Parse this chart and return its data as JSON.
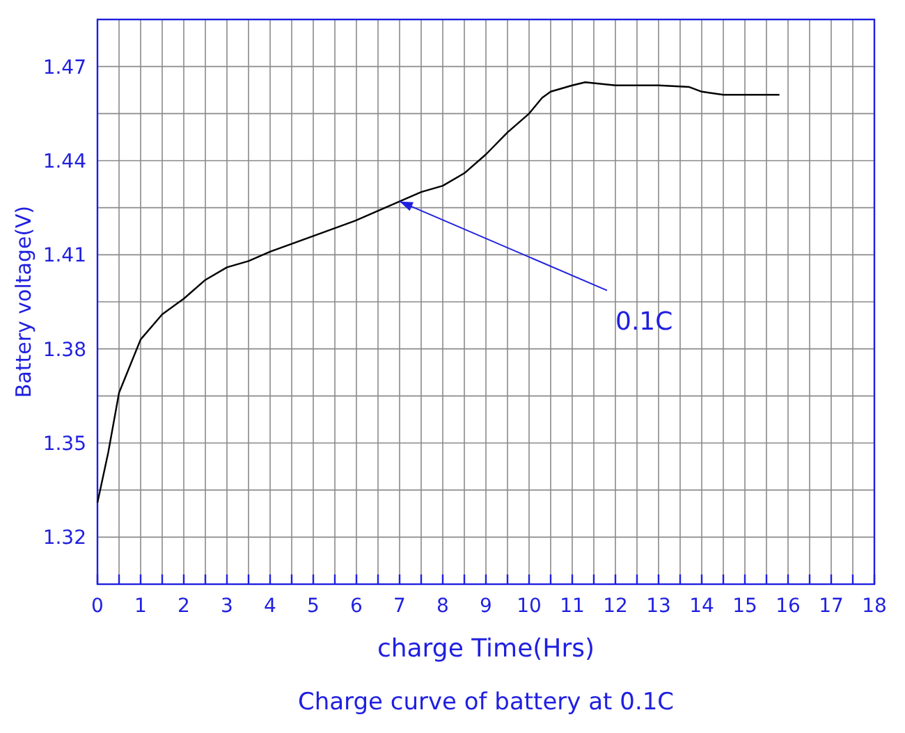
{
  "chart_data": {
    "type": "line",
    "title": "Charge curve of battery at 0.1C",
    "xlabel": "charge Time(Hrs)",
    "ylabel": "Battery voltage(V)",
    "x": [
      0,
      0.25,
      0.5,
      1,
      1.5,
      2,
      2.5,
      3,
      3.5,
      4,
      5,
      6,
      7,
      7.5,
      8,
      8.5,
      9,
      9.5,
      10,
      10.3,
      10.5,
      11,
      11.3,
      12,
      13,
      13.7,
      14,
      14.5,
      15.8
    ],
    "series": [
      {
        "color": "#000000",
        "values": [
          1.331,
          1.347,
          1.366,
          1.383,
          1.391,
          1.396,
          1.402,
          1.406,
          1.408,
          1.411,
          1.416,
          1.421,
          1.427,
          1.43,
          1.432,
          1.436,
          1.442,
          1.449,
          1.455,
          1.46,
          1.462,
          1.464,
          1.465,
          1.464,
          1.464,
          1.4635,
          1.462,
          1.461,
          1.461
        ]
      }
    ],
    "xlim": [
      0,
      18
    ],
    "xticks": [
      0,
      {
        "value": 0.5,
        "label": null
      },
      1,
      {
        "value": 1.5,
        "label": null
      },
      2,
      {
        "value": 2.5,
        "label": null
      },
      3,
      {
        "value": 3.5,
        "label": null
      },
      4,
      {
        "value": 4.5,
        "label": null
      },
      5,
      {
        "value": 5.5,
        "label": null
      },
      6,
      {
        "value": 6.5,
        "label": null
      },
      7,
      {
        "value": 7.5,
        "label": null
      },
      8,
      {
        "value": 8.5,
        "label": null
      },
      9,
      {
        "value": 9.5,
        "label": null
      },
      10,
      {
        "value": 10.5,
        "label": null
      },
      11,
      {
        "value": 11.5,
        "label": null
      },
      12,
      {
        "value": 12.5,
        "label": null
      },
      13,
      {
        "value": 13.5,
        "label": null
      },
      14,
      {
        "value": 14.5,
        "label": null
      },
      15,
      {
        "value": 15.5,
        "label": null
      },
      16,
      {
        "value": 16.5,
        "label": null
      },
      17,
      {
        "value": 17.5,
        "label": null
      },
      18
    ],
    "ylim": [
      1.305,
      1.485
    ],
    "yticks": [
      {
        "value": 1.305,
        "label": null
      },
      1.32,
      {
        "value": 1.335,
        "label": null
      },
      1.35,
      {
        "value": 1.365,
        "label": null
      },
      1.38,
      {
        "value": 1.395,
        "label": null
      },
      1.41,
      {
        "value": 1.425,
        "label": null
      },
      1.44,
      {
        "value": 1.455,
        "label": null
      },
      1.47,
      {
        "value": 1.485,
        "label": null
      }
    ],
    "grid": true,
    "marker": "none",
    "line_style": "solid",
    "annotations": [
      {
        "text": "0.1C",
        "x": 7,
        "y": 1.427
      }
    ]
  }
}
